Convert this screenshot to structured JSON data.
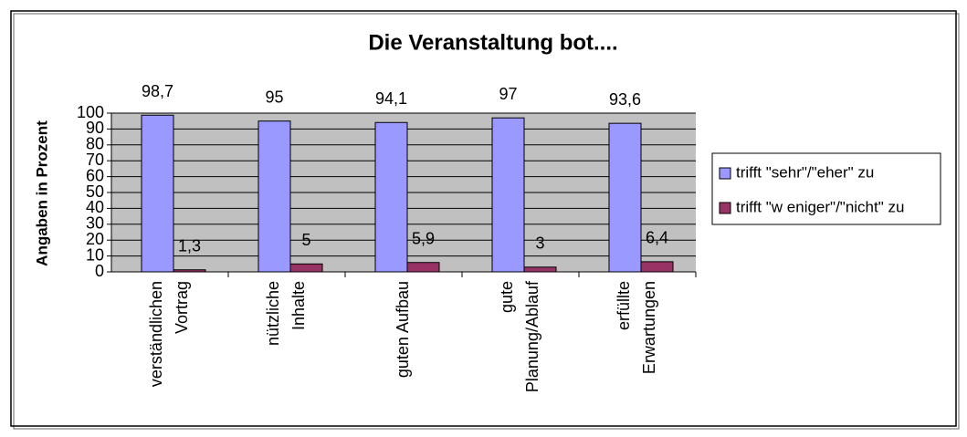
{
  "chart_data": {
    "type": "bar",
    "title": "Die Veranstaltung bot....",
    "y_label": "Angaben in Prozent",
    "categories": [
      [
        "verständlichen",
        "Vortrag"
      ],
      [
        "nützliche",
        "Inhalte"
      ],
      [
        "guten Aufbau"
      ],
      [
        "gute",
        "Planung/Ablauf"
      ],
      [
        "erfüllte",
        "Erwartungen"
      ]
    ],
    "series": [
      {
        "name": "trifft \"sehr\"/\"eher\" zu",
        "color": "#9999ff",
        "values": [
          98.7,
          95,
          94.1,
          97,
          93.6
        ],
        "value_labels": [
          "98,7",
          "95",
          "94,1",
          "97",
          "93,6"
        ]
      },
      {
        "name": "trifft \"w eniger\"/\"nicht\" zu",
        "color": "#993366",
        "values": [
          1.3,
          5,
          5.9,
          3,
          6.4
        ],
        "value_labels": [
          "1,3",
          "5",
          "5,9",
          "3",
          "6,4"
        ]
      }
    ],
    "ylim": [
      0,
      100
    ],
    "yticks": [
      0,
      10,
      20,
      30,
      40,
      50,
      60,
      70,
      80,
      90,
      100
    ],
    "grid": true,
    "legend": "right"
  }
}
